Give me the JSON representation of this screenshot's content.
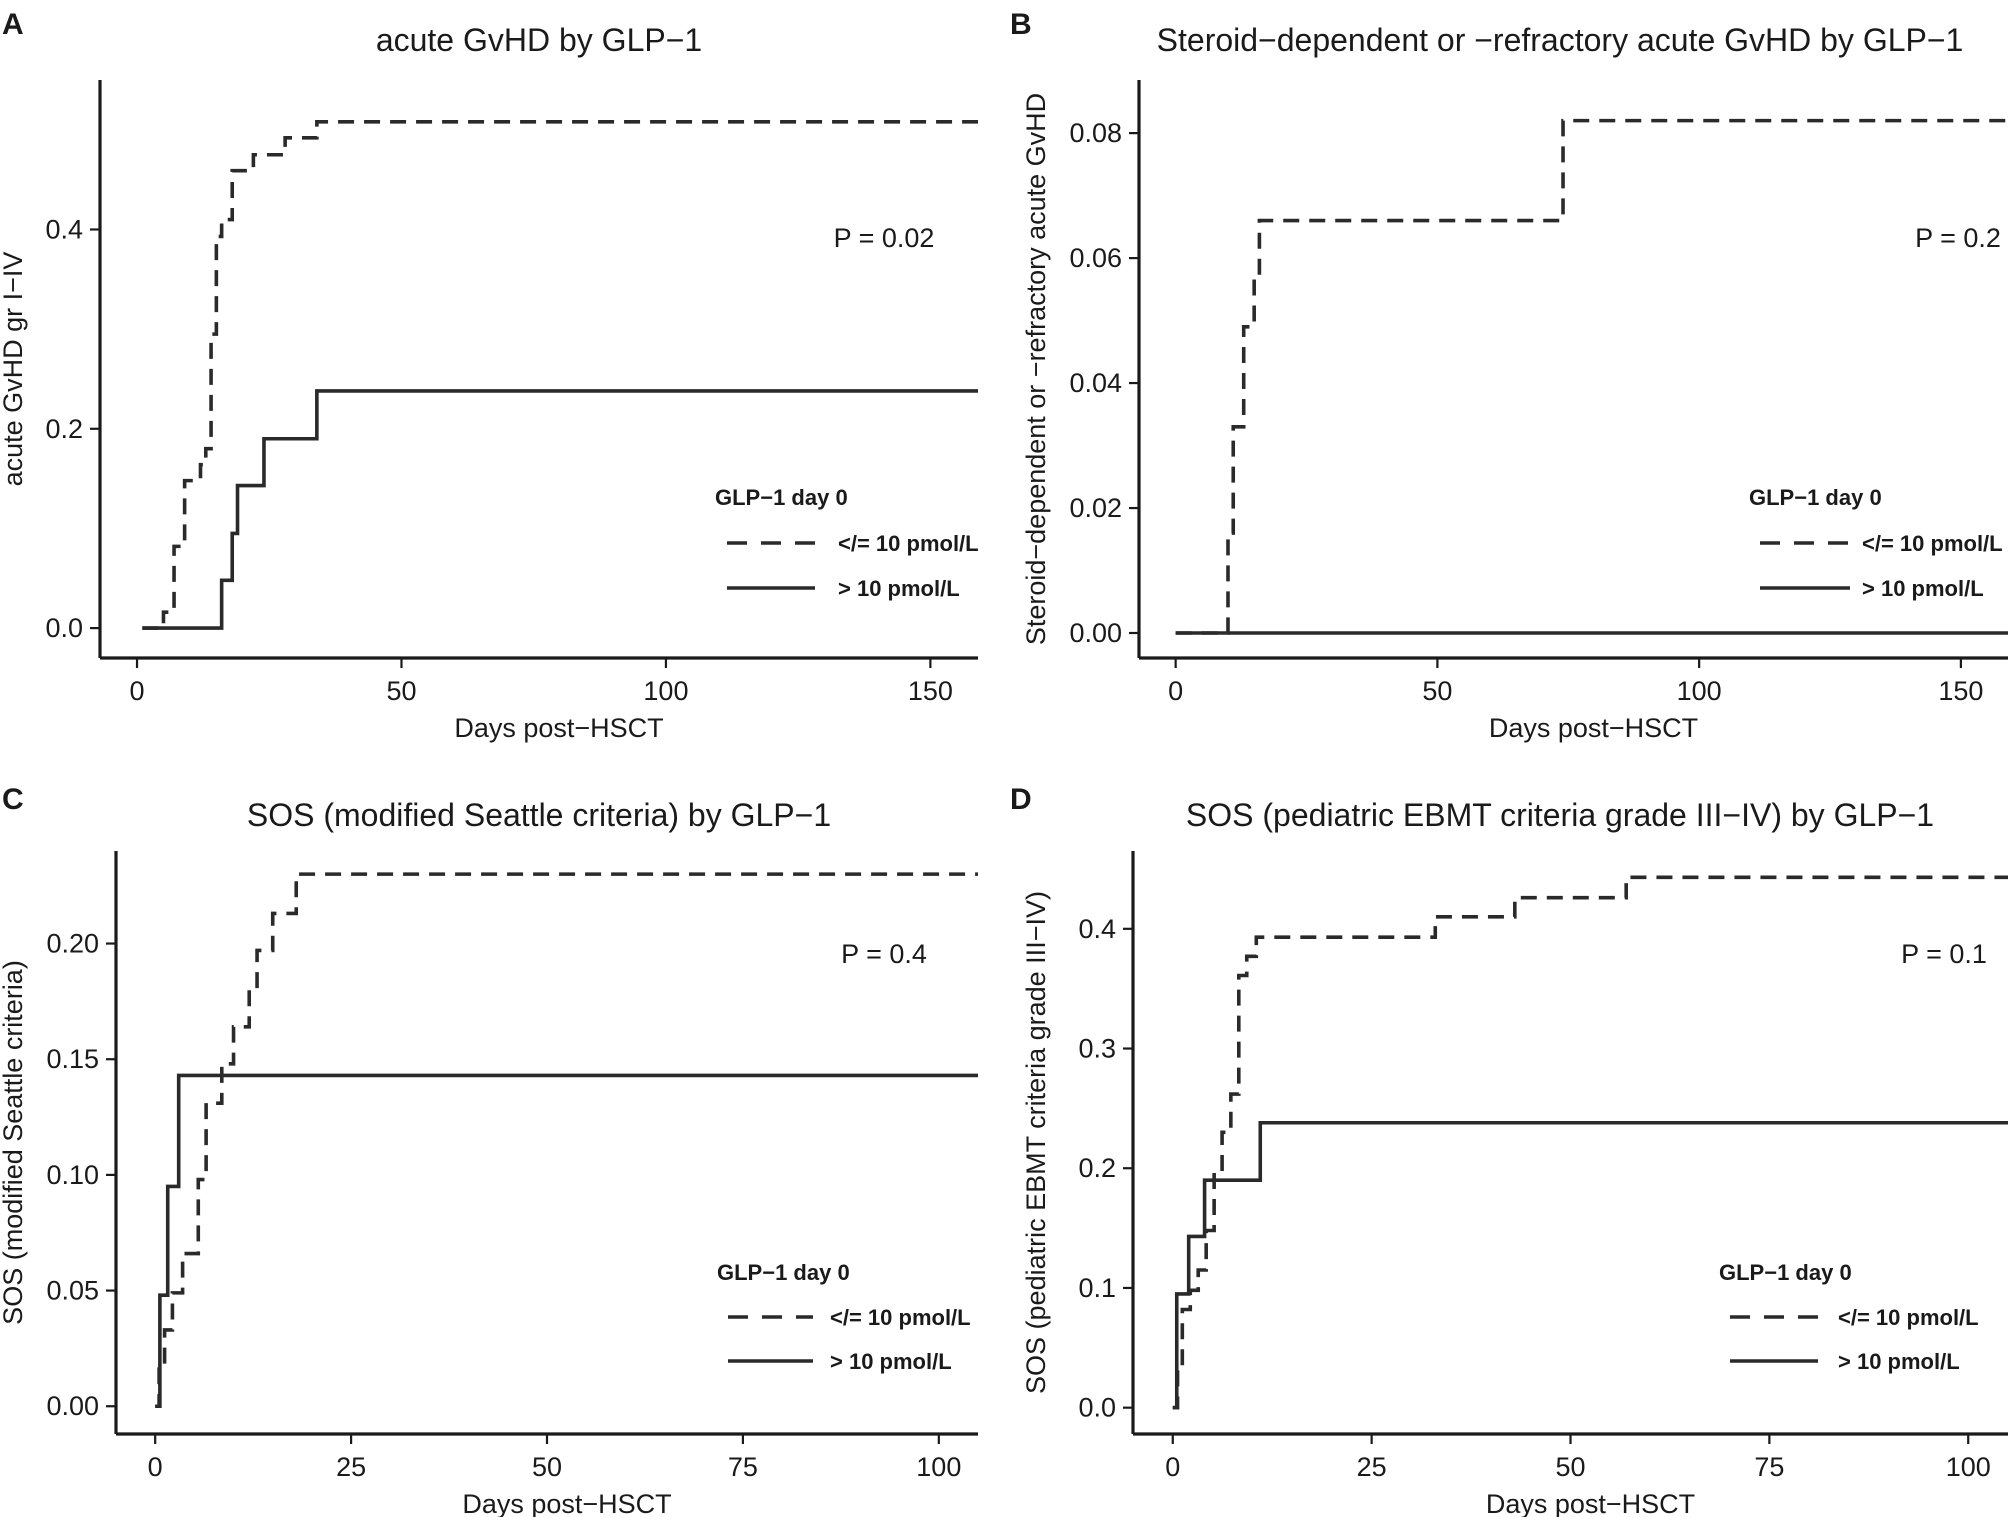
{
  "chart_data": [
    {
      "type": "line",
      "step": true,
      "panel": "A",
      "title": "acute GvHD by GLP−1",
      "xlabel": "Days post−HSCT",
      "ylabel": "acute GvHD gr I−IV",
      "xlim": [
        -7,
        159
      ],
      "ylim": [
        -0.03,
        0.55
      ],
      "xticks": [
        0,
        50,
        100,
        150
      ],
      "yticks": [
        0.0,
        0.2,
        0.4
      ],
      "ytick_labels": [
        "0.0",
        "0.2",
        "0.4"
      ],
      "p_value": "P = 0.02",
      "legend": {
        "title": "GLP−1 day 0",
        "position": "bottom-right"
      },
      "series": [
        {
          "name": "</= 10 pmol/L",
          "style": "dashed",
          "x": [
            1,
            5,
            7,
            9,
            12,
            13,
            14,
            15,
            16,
            18,
            22,
            28,
            34,
            159
          ],
          "y": [
            0,
            0.016,
            0.082,
            0.148,
            0.164,
            0.18,
            0.295,
            0.393,
            0.41,
            0.459,
            0.475,
            0.492,
            0.508,
            0.508
          ]
        },
        {
          "name": "> 10 pmol/L",
          "style": "solid",
          "x": [
            1,
            16,
            18,
            19,
            20,
            24,
            34,
            159
          ],
          "y": [
            0,
            0.048,
            0.095,
            0.143,
            0.143,
            0.19,
            0.238,
            0.238
          ]
        }
      ]
    },
    {
      "type": "line",
      "step": true,
      "panel": "B",
      "title": "Steroid−dependent or −refractory acute GvHD by GLP−1",
      "xlabel": "Days post−HSCT",
      "ylabel": "Steroid−dependent or −refractory acute GvHD",
      "xlim": [
        -7,
        159
      ],
      "ylim": [
        -0.004,
        0.0885
      ],
      "xticks": [
        0,
        50,
        100,
        150
      ],
      "yticks": [
        0.0,
        0.02,
        0.04,
        0.06,
        0.08
      ],
      "ytick_labels": [
        "0.00",
        "0.02",
        "0.04",
        "0.06",
        "0.08"
      ],
      "p_value": "P = 0.2",
      "legend": {
        "title": "GLP−1 day 0",
        "position": "bottom-right"
      },
      "series": [
        {
          "name": "</= 10 pmol/L",
          "style": "dashed",
          "x": [
            0,
            10,
            11,
            13,
            15,
            16,
            74,
            159
          ],
          "y": [
            0,
            0.016,
            0.033,
            0.049,
            0.057,
            0.066,
            0.082,
            0.082
          ]
        },
        {
          "name": "> 10 pmol/L",
          "style": "solid",
          "x": [
            0,
            159
          ],
          "y": [
            0,
            0
          ]
        }
      ]
    },
    {
      "type": "line",
      "step": true,
      "panel": "C",
      "title": "SOS (modified Seattle criteria) by GLP−1",
      "xlabel": "Days post−HSCT",
      "ylabel": "SOS (modified Seattle criteria)",
      "xlim": [
        -5,
        105
      ],
      "ylim": [
        -0.012,
        0.24
      ],
      "xticks": [
        0,
        25,
        50,
        75,
        100
      ],
      "yticks": [
        0.0,
        0.05,
        0.1,
        0.15,
        0.2
      ],
      "ytick_labels": [
        "0.00",
        "0.05",
        "0.10",
        "0.15",
        "0.20"
      ],
      "p_value": "P = 0.4",
      "legend": {
        "title": "GLP−1 day 0",
        "position": "bottom-right"
      },
      "series": [
        {
          "name": "</= 10 pmol/L",
          "style": "dashed",
          "x": [
            0,
            0.5,
            1.2,
            2.2,
            3.5,
            5.5,
            6.5,
            8.5,
            10,
            12,
            13,
            15,
            18,
            105
          ],
          "y": [
            0,
            0.016,
            0.033,
            0.049,
            0.066,
            0.098,
            0.131,
            0.148,
            0.164,
            0.18,
            0.197,
            0.213,
            0.23,
            0.23
          ]
        },
        {
          "name": "> 10 pmol/L",
          "style": "solid",
          "x": [
            0,
            0.6,
            1.6,
            3,
            105
          ],
          "y": [
            0,
            0.048,
            0.095,
            0.143,
            0.143
          ]
        }
      ]
    },
    {
      "type": "line",
      "step": true,
      "panel": "D",
      "title": "SOS (pediatric EBMT criteria grade III−IV) by GLP−1",
      "xlabel": "Days post−HSCT",
      "ylabel": "SOS (pediatric EBMT criteria grade III−IV)",
      "xlim": [
        -5,
        105
      ],
      "ylim": [
        -0.022,
        0.465
      ],
      "xticks": [
        0,
        25,
        50,
        75,
        100
      ],
      "yticks": [
        0.0,
        0.1,
        0.2,
        0.3,
        0.4
      ],
      "ytick_labels": [
        "0.0",
        "0.1",
        "0.2",
        "0.3",
        "0.4"
      ],
      "p_value": "P = 0.1",
      "legend": {
        "title": "GLP−1 day 0",
        "position": "bottom-right"
      },
      "series": [
        {
          "name": "</= 10 pmol/L",
          "style": "dashed",
          "x": [
            0,
            0.6,
            1.2,
            2.2,
            3.2,
            4.2,
            5.2,
            6.2,
            7.3,
            8.3,
            9.3,
            10.5,
            33,
            43,
            57,
            105
          ],
          "y": [
            0,
            0.033,
            0.082,
            0.098,
            0.115,
            0.148,
            0.197,
            0.23,
            0.262,
            0.361,
            0.377,
            0.393,
            0.41,
            0.426,
            0.443,
            0.443
          ]
        },
        {
          "name": "> 10 pmol/L",
          "style": "solid",
          "x": [
            0,
            0.5,
            2,
            4,
            11,
            105
          ],
          "y": [
            0,
            0.095,
            0.143,
            0.19,
            0.238,
            0.238
          ]
        }
      ]
    }
  ]
}
